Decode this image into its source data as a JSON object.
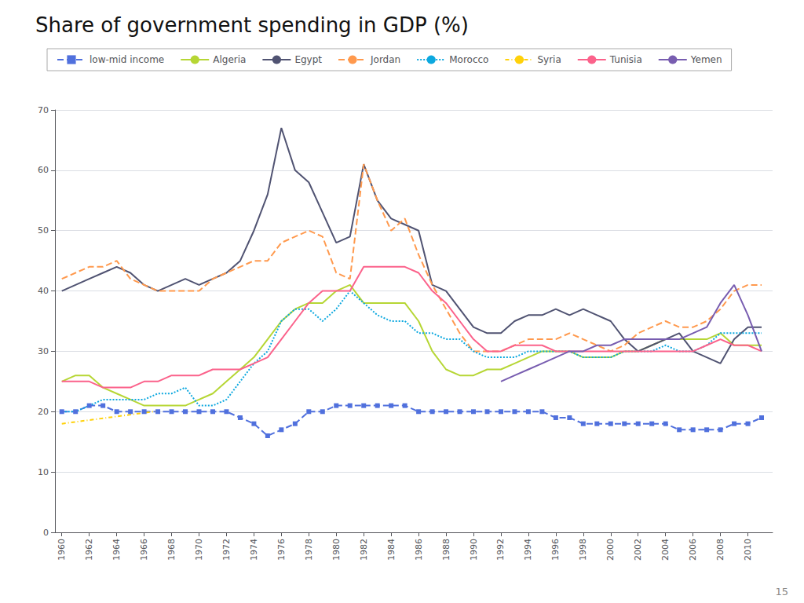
{
  "chart_data": {
    "type": "line",
    "title": "Share of government spending in GDP (%)",
    "annotations": [
      "15"
    ],
    "x": [
      1960,
      1961,
      1962,
      1963,
      1964,
      1965,
      1966,
      1967,
      1968,
      1969,
      1970,
      1971,
      1972,
      1973,
      1974,
      1975,
      1976,
      1977,
      1978,
      1979,
      1980,
      1981,
      1982,
      1983,
      1984,
      1985,
      1986,
      1987,
      1988,
      1989,
      1990,
      1991,
      1992,
      1993,
      1994,
      1995,
      1996,
      1997,
      1998,
      1999,
      2000,
      2001,
      2002,
      2003,
      2004,
      2005,
      2006,
      2007,
      2008,
      2009,
      2010,
      2011
    ],
    "series": [
      {
        "name": "low-mid income",
        "line_style": "dashed",
        "marker": "square",
        "values": [
          20,
          20,
          21,
          21,
          20,
          20,
          20,
          20,
          20,
          20,
          20,
          20,
          20,
          19,
          18,
          16,
          17,
          18,
          20,
          20,
          21,
          21,
          21,
          21,
          21,
          21,
          20,
          20,
          20,
          20,
          20,
          20,
          20,
          20,
          20,
          20,
          19,
          19,
          18,
          18,
          18,
          18,
          18,
          18,
          18,
          17,
          17,
          17,
          17,
          18,
          18,
          19
        ]
      },
      {
        "name": "Algeria",
        "line_style": "solid",
        "values": [
          25,
          26,
          26,
          24,
          23,
          22,
          21,
          21,
          21,
          21,
          22,
          23,
          25,
          27,
          29,
          32,
          35,
          37,
          38,
          38,
          40,
          41,
          38,
          38,
          38,
          38,
          35,
          30,
          27,
          26,
          26,
          27,
          27,
          28,
          29,
          30,
          30,
          30,
          29,
          29,
          29,
          30,
          30,
          31,
          32,
          32,
          32,
          32,
          33,
          31,
          31,
          31
        ]
      },
      {
        "name": "Egypt",
        "line_style": "solid",
        "values": [
          40,
          41,
          42,
          43,
          44,
          43,
          41,
          40,
          41,
          42,
          41,
          42,
          43,
          45,
          50,
          56,
          67,
          60,
          58,
          53,
          48,
          49,
          61,
          55,
          52,
          51,
          50,
          41,
          40,
          37,
          34,
          33,
          33,
          35,
          36,
          36,
          37,
          36,
          37,
          36,
          35,
          32,
          30,
          31,
          32,
          33,
          30,
          29,
          28,
          32,
          34,
          34
        ]
      },
      {
        "name": "Jordan",
        "line_style": "dashed",
        "values": [
          42,
          43,
          44,
          44,
          45,
          42,
          41,
          40,
          40,
          40,
          40,
          42,
          43,
          44,
          45,
          45,
          48,
          49,
          50,
          49,
          43,
          42,
          61,
          55,
          50,
          52,
          46,
          41,
          37,
          33,
          30,
          30,
          30,
          31,
          32,
          32,
          32,
          33,
          32,
          31,
          30,
          31,
          33,
          34,
          35,
          34,
          34,
          35,
          37,
          40,
          41,
          41
        ]
      },
      {
        "name": "Morocco",
        "line_style": "dotted",
        "values": [
          20,
          20,
          21,
          22,
          22,
          22,
          22,
          23,
          23,
          24,
          21,
          21,
          22,
          25,
          28,
          30,
          35,
          37,
          37,
          35,
          37,
          40,
          38,
          36,
          35,
          35,
          33,
          33,
          32,
          32,
          30,
          29,
          29,
          29,
          30,
          30,
          30,
          30,
          29,
          29,
          29,
          30,
          30,
          30,
          31,
          30,
          30,
          31,
          33,
          33,
          33,
          33
        ]
      },
      {
        "name": "Syria",
        "line_style": "dashdot",
        "values": [
          18,
          18.3,
          18.6,
          18.9,
          19.2,
          19.5,
          19.8,
          20.1,
          null,
          null,
          null,
          null,
          null,
          null,
          null,
          null,
          null,
          null,
          null,
          null,
          null,
          null,
          null,
          null,
          null,
          null,
          null,
          null,
          null,
          null,
          null,
          null,
          null,
          null,
          null,
          null,
          null,
          null,
          null,
          null,
          null,
          null,
          null,
          null,
          null,
          null,
          null,
          null,
          null,
          null,
          null,
          null
        ]
      },
      {
        "name": "Tunisia",
        "line_style": "solid",
        "values": [
          25,
          25,
          25,
          24,
          24,
          24,
          25,
          25,
          26,
          26,
          26,
          27,
          27,
          27,
          28,
          29,
          32,
          35,
          38,
          40,
          40,
          40,
          44,
          44,
          44,
          44,
          43,
          40,
          38,
          35,
          32,
          30,
          30,
          31,
          31,
          31,
          30,
          30,
          30,
          30,
          30,
          30,
          30,
          30,
          30,
          30,
          30,
          31,
          32,
          31,
          31,
          30
        ]
      },
      {
        "name": "Yemen",
        "line_style": "solid",
        "values": [
          null,
          null,
          null,
          null,
          null,
          null,
          null,
          null,
          null,
          null,
          null,
          null,
          null,
          null,
          null,
          null,
          null,
          null,
          null,
          null,
          null,
          null,
          null,
          null,
          null,
          null,
          null,
          null,
          null,
          null,
          null,
          null,
          25,
          26,
          27,
          28,
          29,
          30,
          30,
          31,
          31,
          32,
          32,
          32,
          32,
          32,
          33,
          34,
          38,
          41,
          36,
          30
        ]
      }
    ],
    "xlim": [
      1959.5,
      2011.8
    ],
    "xticks": [
      1960,
      1962,
      1964,
      1966,
      1968,
      1970,
      1972,
      1974,
      1976,
      1978,
      1980,
      1982,
      1984,
      1986,
      1988,
      1990,
      1992,
      1994,
      1996,
      1998,
      2000,
      2002,
      2004,
      2006,
      2008,
      2010
    ],
    "ylim": [
      0,
      70
    ],
    "yticks": [
      0,
      10,
      20,
      30,
      40,
      50,
      60,
      70
    ],
    "grid": true,
    "legend": "upper left"
  }
}
